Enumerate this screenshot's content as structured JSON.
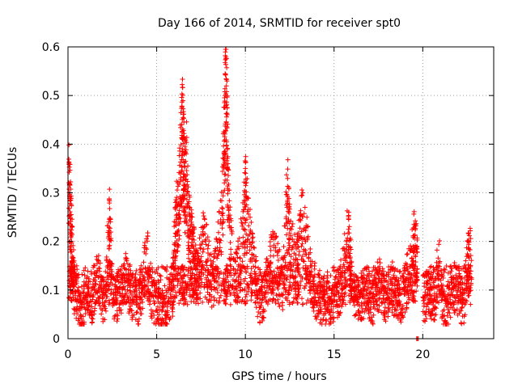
{
  "chart_data": {
    "type": "scatter",
    "title": "Day 166 of 2014, SRMTID for receiver spt0",
    "xlabel": "GPS time / hours",
    "ylabel": "SRMTID / TECUs",
    "xlim": [
      0,
      24
    ],
    "ylim": [
      0,
      0.6
    ],
    "x_ticks": [
      0,
      5,
      10,
      15,
      20
    ],
    "x_tick_labels": [
      "0",
      "5",
      "10",
      "15",
      "20"
    ],
    "y_ticks": [
      0,
      0.1,
      0.2,
      0.3,
      0.4,
      0.5,
      0.6
    ],
    "y_tick_labels": [
      "0",
      "0.1",
      "0.2",
      "0.3",
      "0.4",
      "0.5",
      "0.6"
    ],
    "grid": true,
    "marker": "plus",
    "color": "#ff0000",
    "series": [
      {
        "name": "SRMTID",
        "x": [
          0.05,
          0.1,
          0.15,
          0.2,
          0.25,
          0.35,
          0.5,
          0.7,
          0.9,
          1.1,
          1.3,
          1.5,
          1.7,
          1.9,
          2.1,
          2.3,
          2.35,
          2.5,
          2.7,
          2.9,
          3.1,
          3.3,
          3.5,
          3.7,
          3.9,
          4.1,
          4.3,
          4.5,
          4.7,
          4.9,
          5.1,
          5.3,
          5.5,
          5.7,
          5.9,
          6.0,
          6.1,
          6.2,
          6.3,
          6.4,
          6.45,
          6.5,
          6.55,
          6.6,
          6.7,
          6.8,
          6.9,
          7.0,
          7.1,
          7.2,
          7.3,
          7.5,
          7.7,
          7.9,
          8.1,
          8.3,
          8.5,
          8.7,
          8.8,
          8.85,
          8.9,
          8.95,
          9.0,
          9.1,
          9.3,
          9.5,
          9.7,
          9.9,
          10.0,
          10.1,
          10.3,
          10.5,
          10.7,
          10.9,
          11.1,
          11.3,
          11.5,
          11.7,
          11.9,
          12.1,
          12.3,
          12.4,
          12.5,
          12.7,
          12.9,
          13.0,
          13.2,
          13.4,
          13.6,
          13.8,
          14.0,
          14.2,
          14.4,
          14.6,
          14.8,
          15.0,
          15.2,
          15.4,
          15.6,
          15.8,
          15.9,
          16.0,
          16.2,
          16.4,
          16.6,
          16.8,
          17.0,
          17.2,
          17.4,
          17.6,
          17.8,
          18.0,
          18.2,
          18.4,
          18.6,
          18.8,
          19.0,
          19.2,
          19.4,
          19.5,
          19.6,
          19.7,
          20.0,
          20.2,
          20.4,
          20.5,
          20.7,
          20.9,
          21.1,
          21.3,
          21.5,
          21.7,
          21.9,
          22.1,
          22.3,
          22.5,
          22.6
        ],
        "y": [
          0.37,
          0.33,
          0.3,
          0.24,
          0.2,
          0.14,
          0.1,
          0.07,
          0.09,
          0.12,
          0.1,
          0.14,
          0.16,
          0.12,
          0.1,
          0.27,
          0.28,
          0.13,
          0.11,
          0.12,
          0.14,
          0.16,
          0.13,
          0.11,
          0.09,
          0.12,
          0.18,
          0.2,
          0.12,
          0.1,
          0.09,
          0.07,
          0.08,
          0.11,
          0.13,
          0.22,
          0.28,
          0.32,
          0.38,
          0.44,
          0.49,
          0.43,
          0.4,
          0.36,
          0.41,
          0.3,
          0.25,
          0.22,
          0.2,
          0.18,
          0.16,
          0.21,
          0.24,
          0.2,
          0.14,
          0.17,
          0.22,
          0.32,
          0.45,
          0.5,
          0.58,
          0.53,
          0.4,
          0.26,
          0.19,
          0.15,
          0.21,
          0.26,
          0.35,
          0.3,
          0.22,
          0.17,
          0.12,
          0.1,
          0.12,
          0.17,
          0.19,
          0.2,
          0.16,
          0.14,
          0.3,
          0.33,
          0.25,
          0.2,
          0.17,
          0.22,
          0.28,
          0.24,
          0.18,
          0.15,
          0.12,
          0.11,
          0.09,
          0.1,
          0.09,
          0.11,
          0.12,
          0.14,
          0.19,
          0.25,
          0.2,
          0.16,
          0.12,
          0.1,
          0.11,
          0.13,
          0.12,
          0.1,
          0.13,
          0.15,
          0.11,
          0.12,
          0.14,
          0.13,
          0.12,
          0.11,
          0.14,
          0.16,
          0.2,
          0.24,
          0.21,
          0.0,
          0.12,
          0.11,
          0.14,
          0.1,
          0.12,
          0.2,
          0.1,
          0.08,
          0.11,
          0.13,
          0.14,
          0.12,
          0.09,
          0.18,
          0.2
        ],
        "noise_note": "dense noisy cloud sampled around these anchors, ~20 points per anchor"
      }
    ]
  }
}
